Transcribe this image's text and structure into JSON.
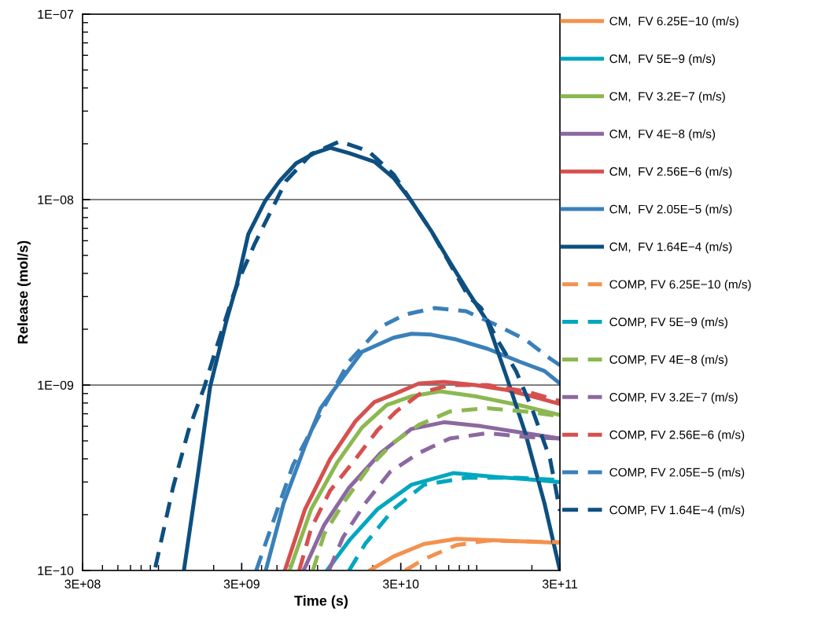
{
  "chart_data": {
    "type": "line",
    "xlabel": "Time (s)",
    "ylabel": "Release (mol/s)",
    "log": "xy",
    "grid": "y",
    "legend": "right",
    "xlim": [
      300000000.0,
      300000000000.0
    ],
    "xticks": [
      {
        "value": 300000000.0,
        "label": "3E+08"
      },
      {
        "value": 3000000000.0,
        "label": "3E+09"
      },
      {
        "value": 30000000000.0,
        "label": "3E+10"
      },
      {
        "value": 300000000000.0,
        "label": "3E+11"
      }
    ],
    "ylim": [
      1e-10,
      1e-07
    ],
    "yticks": [
      {
        "value": 1e-10,
        "label": "1E−10"
      },
      {
        "value": 1e-09,
        "label": "1E−09"
      },
      {
        "value": 1e-08,
        "label": "1E−08"
      },
      {
        "value": 1e-07,
        "label": "1E−07"
      }
    ],
    "series": [
      {
        "name": "CM,  FV 6.25E−10 (m/s)",
        "color": "#f4914e",
        "line_style": "solid",
        "x": [
          19100000000.0,
          27000000000.0,
          42000000000.0,
          67000000000.0,
          132000000000.0,
          300000000000.0
        ],
        "values": [
          1e-10,
          1.19e-10,
          1.39e-10,
          1.48e-10,
          1.45e-10,
          1.41e-10
        ]
      },
      {
        "name": "CM,  FV 5E−9 (m/s)",
        "color": "#00a7be",
        "line_style": "solid",
        "x": [
          10300000000.0,
          14200000000.0,
          21400000000.0,
          35000000000.0,
          64000000000.0,
          115000000000.0,
          191000000000.0,
          300000000000.0
        ],
        "values": [
          1e-10,
          1.45e-10,
          2.14e-10,
          2.9e-10,
          3.35e-10,
          3.2e-10,
          3.1e-10,
          3e-10
        ]
      },
      {
        "name": "CM,  FV 3.2E−7 (m/s)",
        "color": "#8cb851",
        "line_style": "solid",
        "x": [
          6000000000.0,
          8200000000.0,
          11900000000.0,
          17100000000.0,
          24500000000.0,
          35000000000.0,
          53000000000.0,
          88000000000.0,
          166000000000.0,
          300000000000.0
        ],
        "values": [
          1e-10,
          2.14e-10,
          3.8e-10,
          5.9e-10,
          7.8e-10,
          8.7e-10,
          9.25e-10,
          8.7e-10,
          7.8e-10,
          6.9e-10
        ]
      },
      {
        "name": "CM,  FV 4E−8 (m/s)",
        "color": "#8c68a0",
        "line_style": "solid",
        "x": [
          7350000000.0,
          9900000000.0,
          14200000000.0,
          22400000000.0,
          35000000000.0,
          56000000000.0,
          96000000000.0,
          182000000000.0,
          300000000000.0
        ],
        "values": [
          1e-10,
          1.76e-10,
          2.8e-10,
          4.3e-10,
          5.8e-10,
          6.3e-10,
          6e-10,
          5.5e-10,
          5.15e-10
        ]
      },
      {
        "name": "CM,  FV 2.56E−6 (m/s)",
        "color": "#d5504f",
        "line_style": "solid",
        "x": [
          5600000000.0,
          7500000000.0,
          10800000000.0,
          15600000000.0,
          20500000000.0,
          27000000000.0,
          39000000000.0,
          56000000000.0,
          88000000000.0,
          139000000000.0,
          200000000000.0,
          300000000000.0
        ],
        "values": [
          1e-10,
          2.14e-10,
          4e-10,
          6.4e-10,
          8.1e-10,
          8.9e-10,
          1.02e-09,
          1.04e-09,
          1e-09,
          9.4e-10,
          8.7e-10,
          7.9e-10
        ]
      },
      {
        "name": "CM,  FV 2.05E−5 (m/s)",
        "color": "#3a80ba",
        "line_style": "solid",
        "x": [
          4250000000.0,
          5500000000.0,
          7500000000.0,
          9400000000.0,
          13000000000.0,
          17100000000.0,
          27000000000.0,
          35000000000.0,
          46500000000.0,
          67000000000.0,
          105000000000.0,
          166000000000.0,
          240000000000.0,
          300000000000.0
        ],
        "values": [
          1e-10,
          2.3e-10,
          4.7e-10,
          7.5e-10,
          1.1e-09,
          1.51e-09,
          1.8e-09,
          1.89e-09,
          1.87e-09,
          1.76e-09,
          1.57e-09,
          1.34e-09,
          1.19e-09,
          1.02e-09
        ]
      },
      {
        "name": "CM,  FV 1.64E−4 (m/s)",
        "color": "#0d4f80",
        "line_style": "solid",
        "x": [
          1300000000.0,
          1600000000.0,
          1900000000.0,
          2400000000.0,
          2800000000.0,
          3300000000.0,
          4200000000.0,
          5200000000.0,
          6600000000.0,
          8600000000.0,
          10800000000.0,
          14200000000.0,
          20500000000.0,
          27000000000.0,
          35000000000.0,
          46500000000.0,
          61000000000.0,
          80000000000.0,
          105000000000.0,
          139000000000.0,
          182000000000.0,
          240000000000.0,
          300000000000.0
        ],
        "values": [
          1e-10,
          3.4e-10,
          9.8e-10,
          2.2e-09,
          3.5e-09,
          6.5e-09,
          9.8e-09,
          1.26e-08,
          1.57e-08,
          1.78e-08,
          1.9e-08,
          1.78e-08,
          1.6e-08,
          1.31e-08,
          9.8e-09,
          6.8e-09,
          4.6e-09,
          3.16e-09,
          2.2e-09,
          1.1e-09,
          5.5e-10,
          2.3e-10,
          1e-10
        ]
      },
      {
        "name": "COMP, FV 6.25E−10 (m/s)",
        "color": "#f4914e",
        "line_style": "dashed",
        "x": [
          32000000000.0,
          42000000000.0,
          67000000000.0,
          105000000000.0,
          300000000000.0
        ],
        "values": [
          1e-10,
          1.15e-10,
          1.37e-10,
          1.45e-10,
          1.42e-10
        ]
      },
      {
        "name": "COMP, FV 5E−9 (m/s)",
        "color": "#00a7be",
        "line_style": "dashed",
        "x": [
          14200000000.0,
          17900000000.0,
          27000000000.0,
          42000000000.0,
          77000000000.0,
          166000000000.0,
          300000000000.0
        ],
        "values": [
          1e-10,
          1.39e-10,
          2.14e-10,
          2.9e-10,
          3.16e-10,
          3.16e-10,
          3.07e-10
        ]
      },
      {
        "name": "COMP, FV 4E−8 (m/s)",
        "color": "#8cb851",
        "line_style": "dashed",
        "x": [
          8400000000.0,
          9900000000.0,
          13000000000.0,
          18700000000.0,
          27000000000.0,
          39000000000.0,
          61000000000.0,
          105000000000.0,
          182000000000.0,
          300000000000.0
        ],
        "values": [
          1e-10,
          1.57e-10,
          2.3e-10,
          3.55e-10,
          4.9e-10,
          6.1e-10,
          7.2e-10,
          7.5e-10,
          7.2e-10,
          6.8e-10
        ]
      },
      {
        "name": "COMP, FV 3.2E−7 (m/s)",
        "color": "#8c68a0",
        "line_style": "dashed",
        "x": [
          10600000000.0,
          13000000000.0,
          17900000000.0,
          25700000000.0,
          39000000000.0,
          61000000000.0,
          105000000000.0,
          182000000000.0,
          300000000000.0
        ],
        "values": [
          1e-10,
          1.51e-10,
          2.3e-10,
          3.4e-10,
          4.3e-10,
          5.15e-10,
          5.5e-10,
          5.25e-10,
          5.15e-10
        ]
      },
      {
        "name": "COMP, FV 2.56E−6 (m/s)",
        "color": "#d5504f",
        "line_style": "dashed",
        "x": [
          6900000000.0,
          8200000000.0,
          10800000000.0,
          15600000000.0,
          21400000000.0,
          28000000000.0,
          40500000000.0,
          61000000000.0,
          105000000000.0,
          182000000000.0,
          300000000000.0
        ],
        "values": [
          1e-10,
          1.69e-10,
          2.7e-10,
          4e-10,
          5.7e-10,
          7.2e-10,
          9.1e-10,
          1e-09,
          1e-09,
          9.25e-10,
          8.2e-10
        ]
      },
      {
        "name": "COMP, FV 2.05E−5 (m/s)",
        "color": "#3a80ba",
        "line_style": "dashed",
        "x": [
          3700000000.0,
          4800000000.0,
          6300000000.0,
          9000000000.0,
          14200000000.0,
          22400000000.0,
          32000000000.0,
          49000000000.0,
          77000000000.0,
          115000000000.0,
          182000000000.0,
          260000000000.0,
          300000000000.0
        ],
        "values": [
          1e-10,
          1.9e-10,
          3.7e-10,
          6.6e-10,
          1.34e-09,
          2.06e-09,
          2.4e-09,
          2.6e-09,
          2.5e-09,
          2.14e-09,
          1.76e-09,
          1.39e-09,
          1.28e-09
        ]
      },
      {
        "name": "COMP, FV 1.64E−4 (m/s)",
        "color": "#0d4f80",
        "line_style": "dashed",
        "x": [
          860000000.0,
          1110000000.0,
          1390000000.0,
          1750000000.0,
          2100000000.0,
          2640000000.0,
          2960000000.0,
          3630000000.0,
          4560000000.0,
          5700000000.0,
          8200000000.0,
          12400000000.0,
          18700000000.0,
          27000000000.0,
          46500000000.0,
          80000000000.0,
          96000000000.0,
          121000000000.0,
          159000000000.0,
          200000000000.0,
          260000000000.0,
          300000000000.0
        ],
        "values": [
          1.04e-10,
          2.8e-10,
          5.7e-10,
          9.8e-10,
          1.63e-09,
          3e-09,
          3.9e-09,
          5.8e-09,
          8.6e-09,
          1.26e-08,
          1.76e-08,
          2.06e-08,
          1.83e-08,
          1.37e-08,
          6.8e-09,
          3e-09,
          2.6e-09,
          1.76e-09,
          1.19e-09,
          7.5e-10,
          4e-10,
          2.1e-10
        ]
      }
    ]
  }
}
